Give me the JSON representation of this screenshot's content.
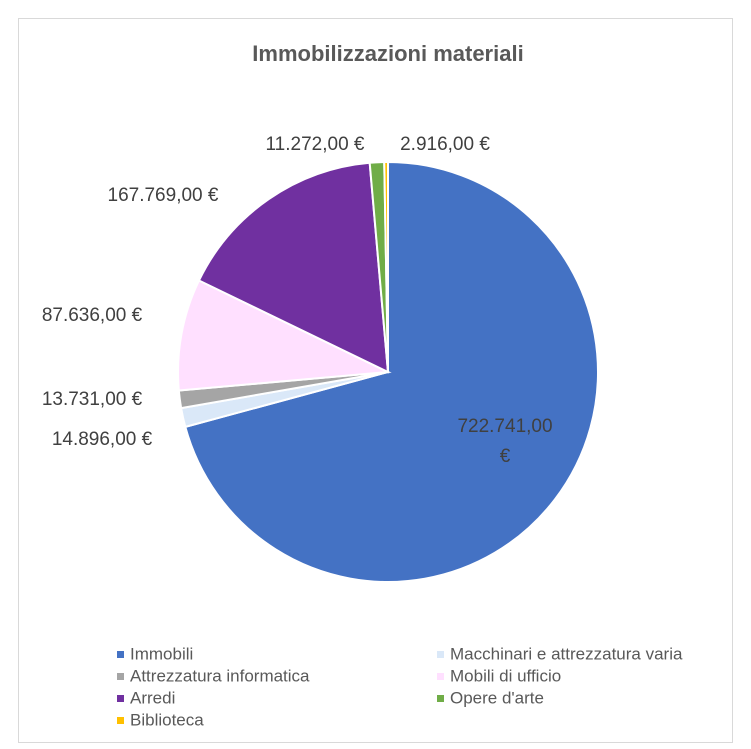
{
  "chart_data": {
    "type": "pie",
    "title": "Immobilizzazioni materiali",
    "categories": [
      "Immobili",
      "Macchinari e attrezzatura varia",
      "Attrezzatura informatica",
      "Mobili di ufficio",
      "Arredi",
      "Opere d'arte",
      "Biblioteca"
    ],
    "values": [
      722741,
      14896,
      13731,
      87636,
      167769,
      11272,
      2916
    ],
    "value_labels": [
      "722.741,00 €",
      "14.896,00 €",
      "13.731,00 €",
      "87.636,00 €",
      "167.769,00 €",
      "11.272,00 €",
      "2.916,00 €"
    ],
    "colors": [
      "#4472c4",
      "#dae8f8",
      "#a5a5a5",
      "#ffe0ff",
      "#7030a0",
      "#70ad47",
      "#ffc000"
    ],
    "legend": "bottom"
  }
}
